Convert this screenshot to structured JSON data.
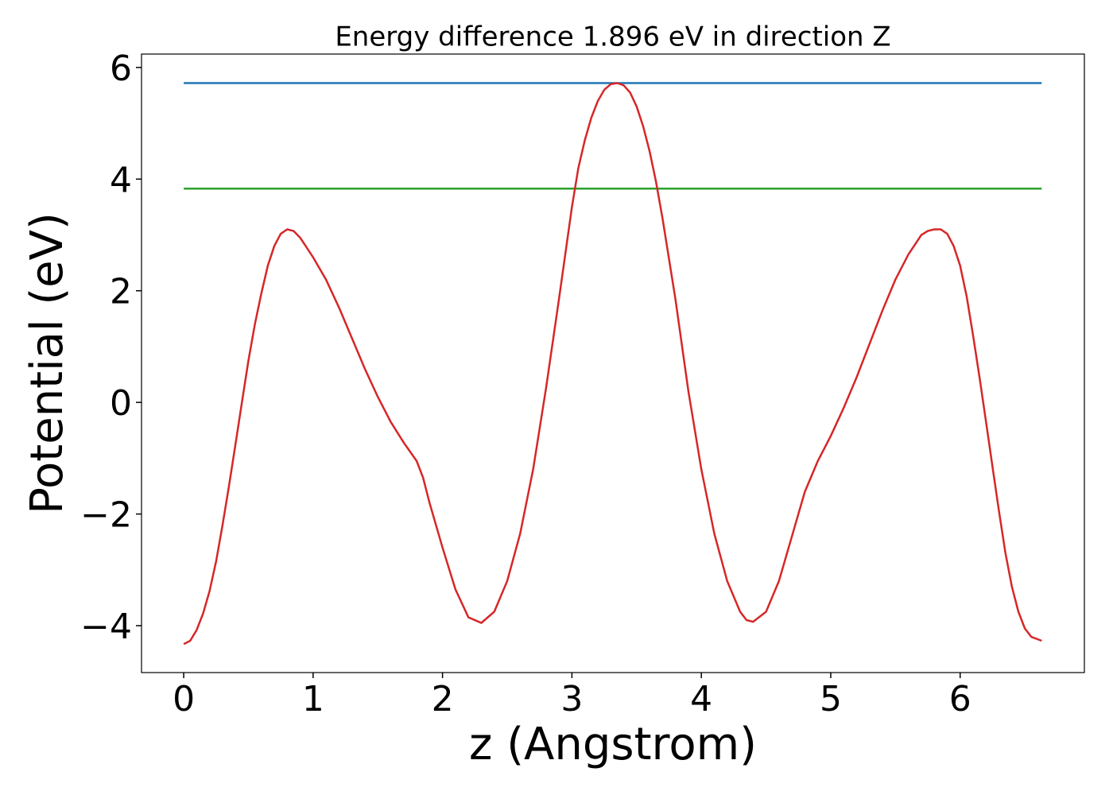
{
  "chart_data": {
    "type": "line",
    "title": "Energy difference 1.896 eV in direction Z",
    "x_label": "z (Angstrom)",
    "y_label": "Potential (eV)",
    "xlim": [
      -0.326,
      6.96
    ],
    "ylim": [
      -4.84,
      6.24
    ],
    "xticks": [
      0,
      1,
      2,
      3,
      4,
      5,
      6
    ],
    "yticks": [
      {
        "value": -4,
        "label": "−4"
      },
      {
        "value": -2,
        "label": "−2"
      },
      0,
      2,
      4,
      6
    ],
    "series": [
      {
        "color": "#1f77b4",
        "x": [
          0,
          6.63
        ],
        "values": [
          5.72,
          5.72
        ]
      },
      {
        "color": "#2ca02c",
        "x": [
          0,
          6.63
        ],
        "values": [
          3.83,
          3.83
        ]
      },
      {
        "color": "#d62728",
        "x": [
          0,
          0.05,
          0.1,
          0.15,
          0.2,
          0.25,
          0.3,
          0.35,
          0.4,
          0.45,
          0.5,
          0.55,
          0.6,
          0.65,
          0.7,
          0.75,
          0.8,
          0.85,
          0.9,
          1.0,
          1.1,
          1.2,
          1.3,
          1.4,
          1.5,
          1.6,
          1.7,
          1.8,
          1.85,
          1.9,
          2.0,
          2.1,
          2.2,
          2.3,
          2.4,
          2.5,
          2.6,
          2.7,
          2.8,
          2.9,
          3.0,
          3.05,
          3.1,
          3.15,
          3.2,
          3.25,
          3.3,
          3.35,
          3.4,
          3.45,
          3.5,
          3.55,
          3.6,
          3.65,
          3.7,
          3.8,
          3.9,
          4.0,
          4.1,
          4.2,
          4.3,
          4.35,
          4.4,
          4.5,
          4.6,
          4.7,
          4.8,
          4.9,
          5.0,
          5.1,
          5.2,
          5.3,
          5.4,
          5.5,
          5.6,
          5.7,
          5.75,
          5.8,
          5.85,
          5.9,
          5.95,
          6.0,
          6.05,
          6.1,
          6.15,
          6.2,
          6.25,
          6.3,
          6.35,
          6.4,
          6.45,
          6.5,
          6.55,
          6.63
        ],
        "values": [
          -4.33,
          -4.27,
          -4.08,
          -3.78,
          -3.38,
          -2.85,
          -2.2,
          -1.5,
          -0.75,
          0.0,
          0.75,
          1.4,
          1.95,
          2.45,
          2.8,
          3.02,
          3.1,
          3.07,
          2.95,
          2.6,
          2.2,
          1.7,
          1.15,
          0.6,
          0.1,
          -0.35,
          -0.72,
          -1.05,
          -1.35,
          -1.8,
          -2.6,
          -3.35,
          -3.85,
          -3.95,
          -3.75,
          -3.2,
          -2.35,
          -1.2,
          0.25,
          1.85,
          3.5,
          4.2,
          4.7,
          5.1,
          5.4,
          5.6,
          5.7,
          5.72,
          5.68,
          5.55,
          5.3,
          4.95,
          4.5,
          3.95,
          3.3,
          1.85,
          0.2,
          -1.2,
          -2.35,
          -3.2,
          -3.75,
          -3.9,
          -3.93,
          -3.75,
          -3.2,
          -2.4,
          -1.6,
          -1.05,
          -0.6,
          -0.1,
          0.45,
          1.05,
          1.65,
          2.2,
          2.65,
          3.0,
          3.07,
          3.1,
          3.1,
          3.02,
          2.8,
          2.45,
          1.9,
          1.2,
          0.45,
          -0.35,
          -1.15,
          -1.95,
          -2.7,
          -3.3,
          -3.75,
          -4.05,
          -4.2,
          -4.27
        ]
      }
    ]
  }
}
